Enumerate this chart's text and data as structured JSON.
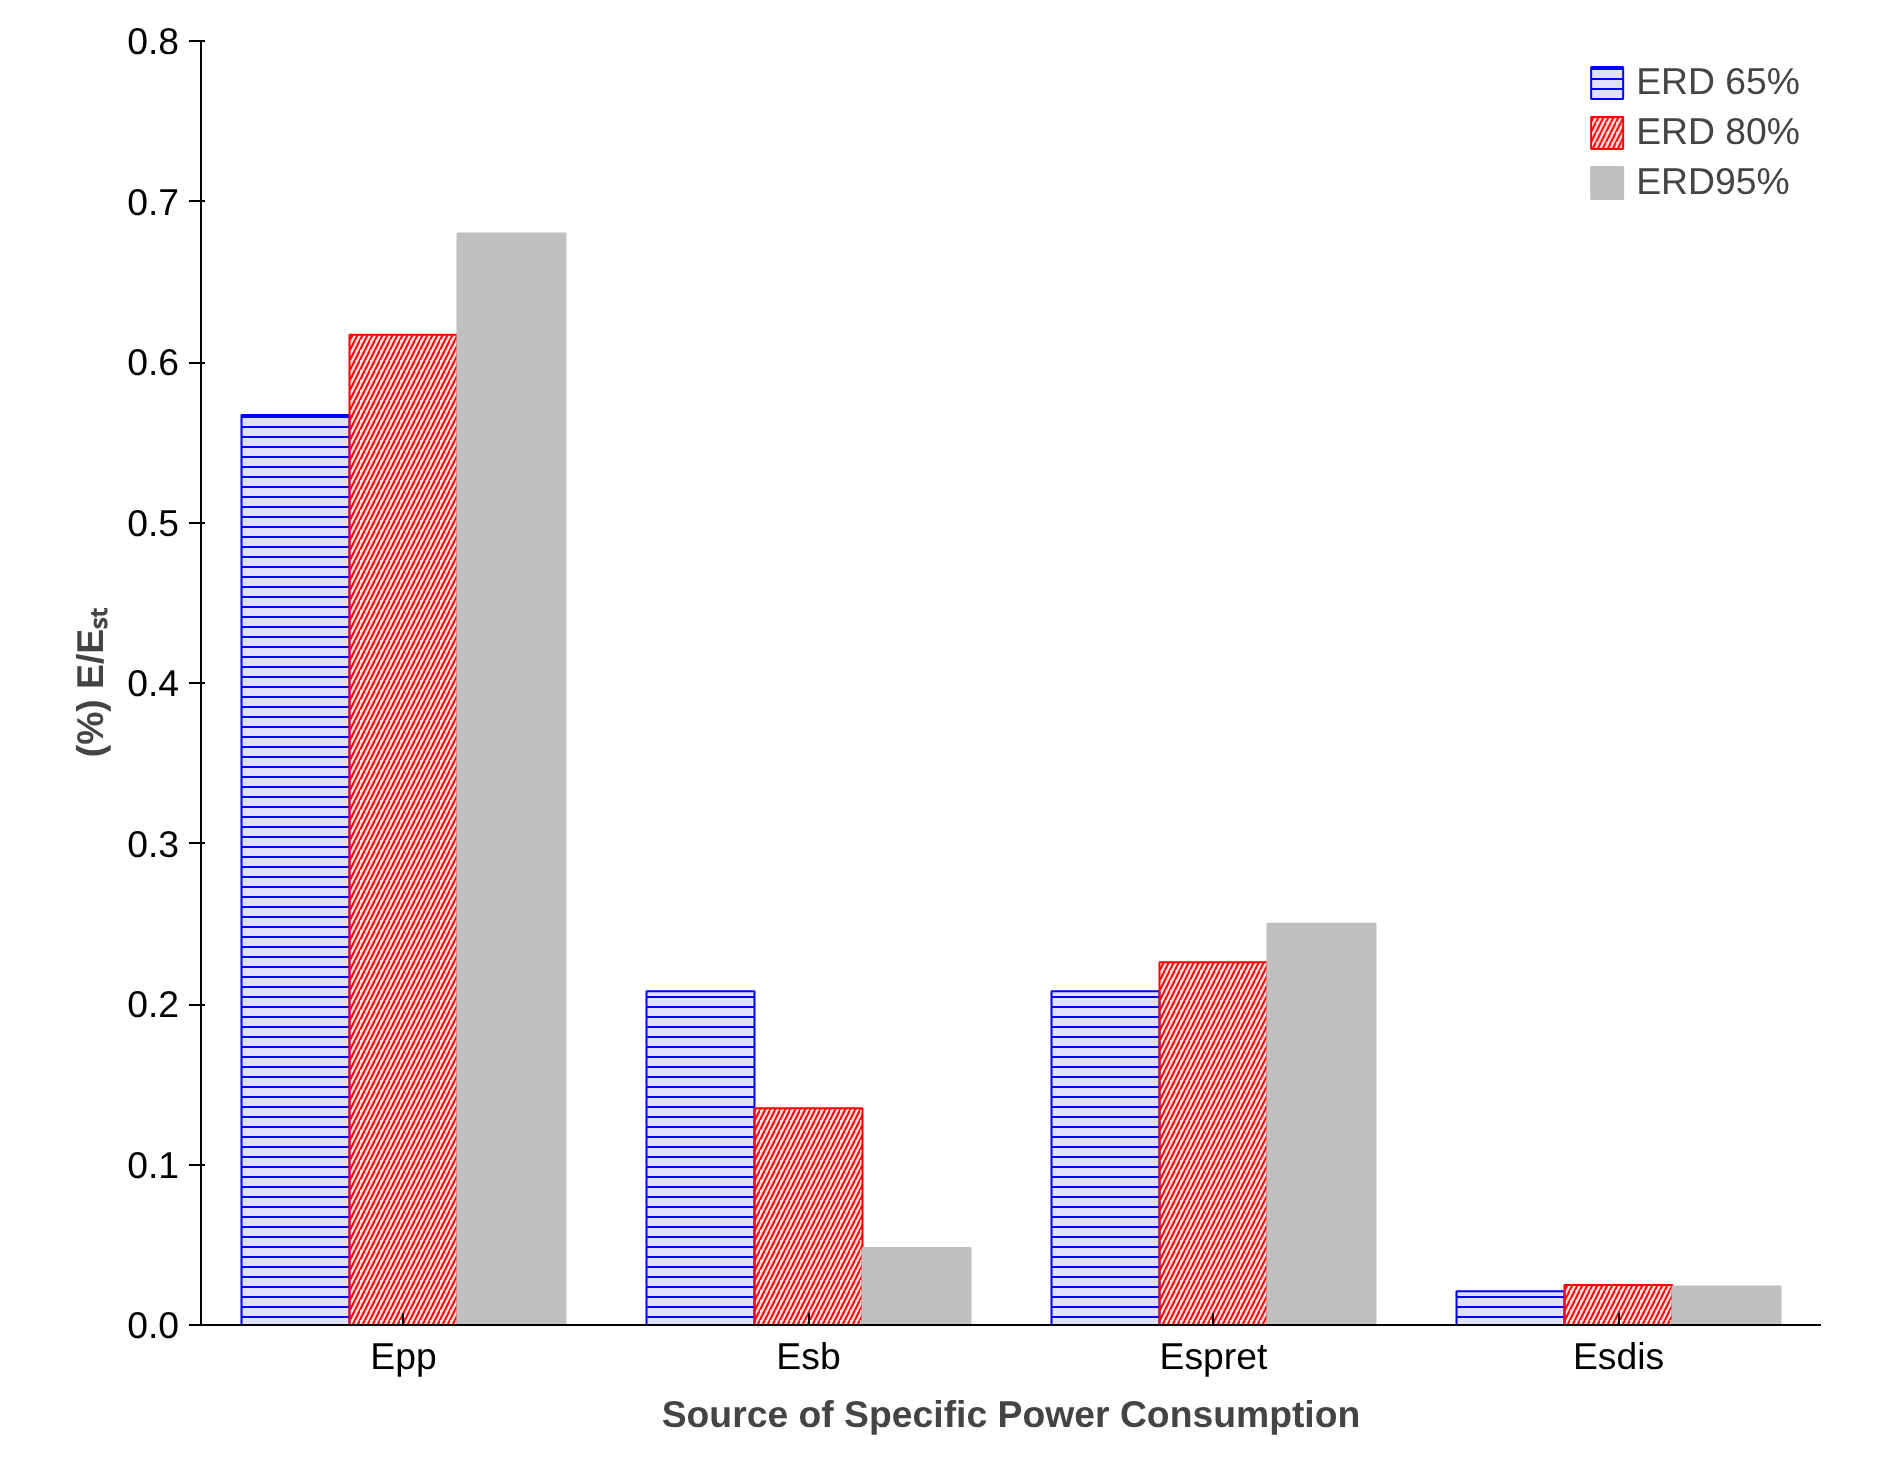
{
  "chart_data": {
    "type": "bar",
    "xlabel": "Source of Specific Power Consumption",
    "ylabel": "(%) E/Eₛₜ",
    "categories": [
      "Epp",
      "Esb",
      "Espret",
      "Esdis"
    ],
    "series": [
      {
        "name": "ERD 65%",
        "color": "#0000ff",
        "values": [
          0.567,
          0.208,
          0.208,
          0.021
        ]
      },
      {
        "name": "ERD 80%",
        "color": "#ff0000",
        "values": [
          0.617,
          0.135,
          0.226,
          0.025
        ]
      },
      {
        "name": "ERD95%",
        "color": "#c0c0c0",
        "values": [
          0.68,
          0.048,
          0.25,
          0.024
        ]
      }
    ],
    "ylim": [
      0,
      0.8
    ],
    "yticks": [
      {
        "value": 0,
        "label": "0.0"
      },
      0.1,
      0.2,
      0.3,
      0.4,
      0.5,
      0.6,
      0.7,
      0.8
    ],
    "grid": false,
    "legend": "top right"
  }
}
